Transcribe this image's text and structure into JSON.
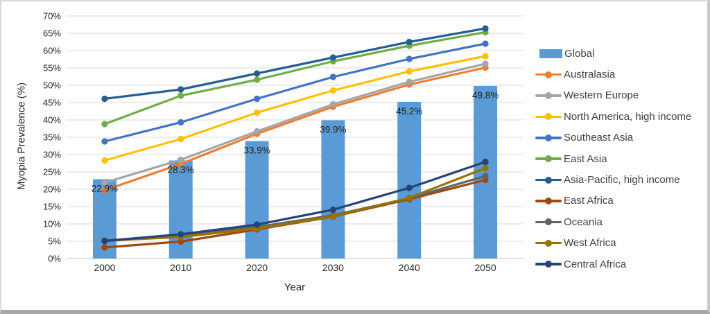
{
  "chart_data": {
    "type": "composite-bar-line",
    "title": "",
    "xlabel": "Year",
    "ylabel": "Myopia Prevalence (%)",
    "categories": [
      "2000",
      "2010",
      "2020",
      "2030",
      "2040",
      "2050"
    ],
    "y_axis": {
      "min": 0,
      "max": 70,
      "step": 5,
      "ticks": [
        "0%",
        "5%",
        "10%",
        "15%",
        "20%",
        "25%",
        "30%",
        "35%",
        "40%",
        "45%",
        "50%",
        "55%",
        "60%",
        "65%",
        "70%"
      ]
    },
    "grid": true,
    "legend_position": "right",
    "bar_series": {
      "name": "Global",
      "color": "#5B9BD5",
      "values": [
        22.9,
        28.3,
        33.9,
        39.9,
        45.2,
        49.8
      ],
      "labels": [
        "22.9%",
        "28.3%",
        "33.9%",
        "39.9%",
        "45.2%",
        "49.8%"
      ]
    },
    "line_series": [
      {
        "name": "Australasia",
        "color": "#ED7D31",
        "values": [
          19.7,
          27.3,
          36.0,
          43.8,
          50.2,
          55.1
        ]
      },
      {
        "name": "Western Europe",
        "color": "#A5A5A5",
        "values": [
          21.9,
          28.5,
          36.7,
          44.5,
          51.0,
          56.2
        ]
      },
      {
        "name": "North America, high income",
        "color": "#FFC000",
        "values": [
          28.3,
          34.5,
          42.1,
          48.5,
          54.0,
          58.4
        ]
      },
      {
        "name": "Southeast Asia",
        "color": "#4472C4",
        "values": [
          33.8,
          39.3,
          46.1,
          52.4,
          57.6,
          62.0
        ]
      },
      {
        "name": "East Asia",
        "color": "#70AD47",
        "values": [
          38.8,
          47.0,
          51.6,
          56.9,
          61.4,
          65.3
        ]
      },
      {
        "name": "Asia-Pacific, high income",
        "color": "#255E91",
        "values": [
          46.1,
          48.8,
          53.4,
          58.0,
          62.5,
          66.4
        ]
      },
      {
        "name": "East Africa",
        "color": "#9E480E",
        "values": [
          3.2,
          4.9,
          8.4,
          12.1,
          17.1,
          22.7
        ]
      },
      {
        "name": "Oceania",
        "color": "#636363",
        "values": [
          5.0,
          6.7,
          9.1,
          12.5,
          17.4,
          23.8
        ]
      },
      {
        "name": "West Africa",
        "color": "#997300",
        "values": [
          5.2,
          6.2,
          8.7,
          12.2,
          17.5,
          26.1
        ]
      },
      {
        "name": "Central Africa",
        "color": "#264478",
        "values": [
          5.1,
          7.0,
          9.8,
          14.1,
          20.4,
          27.9
        ]
      }
    ],
    "colors": {
      "gridline": "#D9D9D9",
      "axis_text": "#262626",
      "legend_text": "#404040",
      "data_label": "#1F1F1F"
    }
  }
}
